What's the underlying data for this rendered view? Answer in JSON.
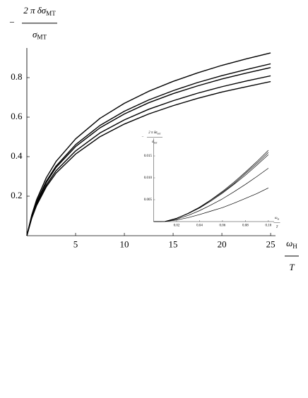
{
  "chart_data": [
    {
      "type": "line",
      "y_label": {
        "prefix": "−",
        "numerator": "2 π δσ",
        "numerator_subscript": "MT",
        "denominator": "σ",
        "denominator_subscript": "MT"
      },
      "x_label": {
        "numerator": "ω",
        "numerator_subscript": "H",
        "denominator": "T"
      },
      "x": [
        0,
        0.5,
        1,
        2,
        3,
        5,
        7.5,
        10,
        12.5,
        15,
        17.5,
        20,
        22.5,
        25
      ],
      "series": [
        {
          "color": "#000000",
          "values": [
            0,
            0.104,
            0.182,
            0.294,
            0.376,
            0.49,
            0.594,
            0.67,
            0.731,
            0.781,
            0.824,
            0.862,
            0.895,
            0.925
          ]
        },
        {
          "color": "#000000",
          "values": [
            0,
            0.098,
            0.171,
            0.276,
            0.353,
            0.461,
            0.558,
            0.63,
            0.687,
            0.734,
            0.775,
            0.81,
            0.841,
            0.87
          ]
        },
        {
          "color": "#000000",
          "values": [
            0,
            0.096,
            0.167,
            0.27,
            0.346,
            0.451,
            0.546,
            0.616,
            0.673,
            0.719,
            0.758,
            0.793,
            0.823,
            0.851
          ]
        },
        {
          "color": "#000000",
          "values": [
            0,
            0.091,
            0.159,
            0.257,
            0.329,
            0.429,
            0.52,
            0.586,
            0.64,
            0.683,
            0.721,
            0.754,
            0.783,
            0.809
          ]
        },
        {
          "color": "#000000",
          "values": [
            0,
            0.088,
            0.153,
            0.248,
            0.317,
            0.413,
            0.501,
            0.565,
            0.616,
            0.658,
            0.695,
            0.727,
            0.754,
            0.78
          ]
        }
      ],
      "xlim": [
        0,
        25.5
      ],
      "ylim": [
        0,
        0.95
      ],
      "xticks": [
        5,
        10,
        15,
        20,
        25
      ],
      "yticks": [
        0.2,
        0.4,
        0.6,
        0.8
      ]
    },
    {
      "type": "line",
      "y_label": {
        "prefix": "−",
        "numerator": "2 π δσ",
        "numerator_subscript": "MT",
        "denominator": "σ",
        "denominator_subscript": "MT"
      },
      "x_label": {
        "numerator": "ω",
        "numerator_subscript": "H",
        "denominator": "T"
      },
      "x": [
        0,
        0.01,
        0.02,
        0.03,
        0.04,
        0.05,
        0.06,
        0.07,
        0.08,
        0.09,
        0.1
      ],
      "series": [
        {
          "color": "#000000",
          "values": [
            0,
            5e-05,
            0.00077,
            0.0019,
            0.0033,
            0.005,
            0.0069,
            0.009,
            0.0113,
            0.0137,
            0.0163
          ]
        },
        {
          "color": "#000000",
          "values": [
            0,
            5e-05,
            0.00075,
            0.0018,
            0.0032,
            0.0049,
            0.0067,
            0.0087,
            0.011,
            0.0133,
            0.0158
          ]
        },
        {
          "color": "#000000",
          "values": [
            0,
            5e-05,
            0.00072,
            0.0018,
            0.0031,
            0.0047,
            0.0065,
            0.0085,
            0.0106,
            0.0129,
            0.0153
          ]
        },
        {
          "color": "#000000",
          "values": [
            0,
            4e-05,
            0.00058,
            0.0014,
            0.0025,
            0.0038,
            0.0052,
            0.0068,
            0.0085,
            0.0103,
            0.0122
          ]
        },
        {
          "color": "#000000",
          "values": [
            0,
            2e-05,
            0.00036,
            0.0009,
            0.0016,
            0.0024,
            0.0032,
            0.0042,
            0.0053,
            0.0064,
            0.0077
          ]
        }
      ],
      "xlim": [
        0,
        0.105
      ],
      "ylim": [
        0,
        0.019
      ],
      "xticks": [
        0.02,
        0.04,
        0.06,
        0.08,
        {
          "value": 0.1,
          "label": "0.10"
        }
      ],
      "yticks": [
        0.005,
        {
          "value": 0.01,
          "label": "0.010"
        },
        0.015
      ]
    }
  ]
}
